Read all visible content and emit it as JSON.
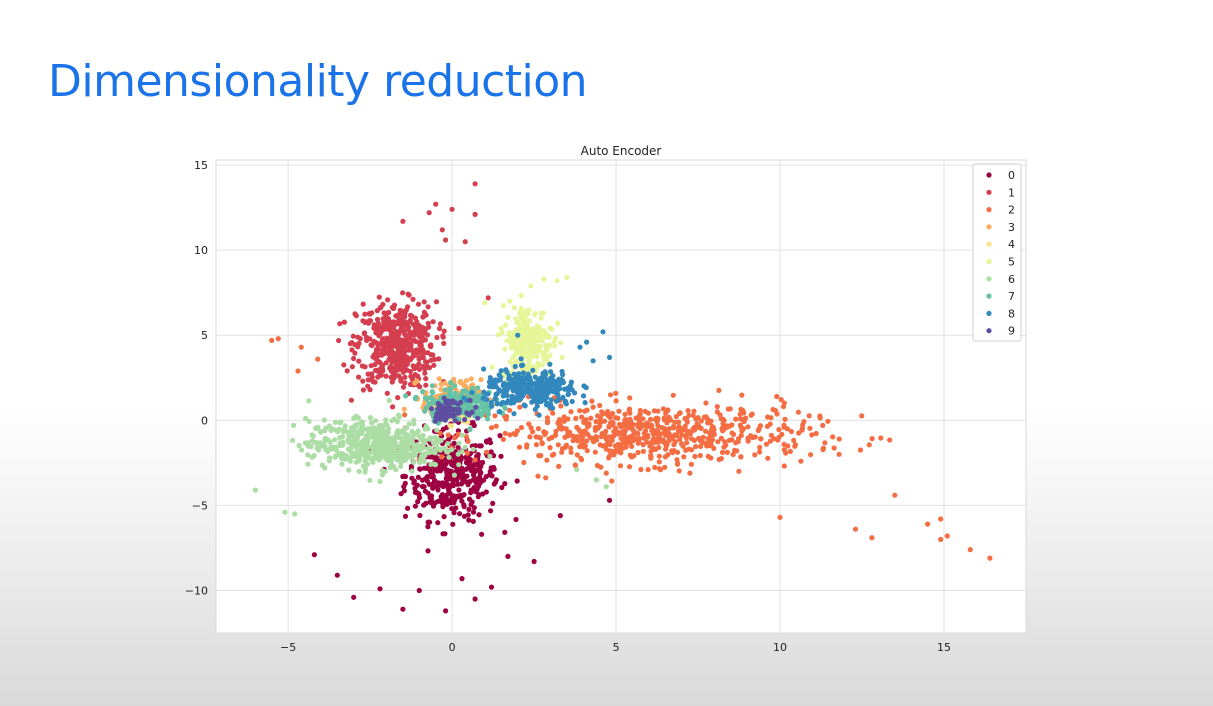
{
  "slide": {
    "title": "Dimensionality reduction"
  },
  "chart_data": {
    "type": "scatter",
    "title": "Auto Encoder",
    "xlabel": "",
    "ylabel": "",
    "xlim": [
      -7.2,
      17.5
    ],
    "ylim": [
      -12.5,
      15.3
    ],
    "xticks": [
      -5,
      0,
      5,
      10,
      15
    ],
    "yticks": [
      15,
      10,
      5,
      0,
      -5,
      -10
    ],
    "grid": true,
    "legend_position": "top-right",
    "series": [
      {
        "name": "0",
        "color": "#9e0142",
        "cluster": {
          "center": [
            0.0,
            -3.2
          ],
          "spread": [
            1.3,
            2.4
          ],
          "n": 400,
          "extra": [
            [
              -3.0,
              -10.4
            ],
            [
              -1.5,
              -11.1
            ],
            [
              -0.2,
              -11.2
            ],
            [
              0.7,
              -10.5
            ],
            [
              1.2,
              -9.8
            ],
            [
              1.7,
              -8.0
            ],
            [
              2.5,
              -8.3
            ],
            [
              3.3,
              -5.6
            ],
            [
              4.8,
              -4.7
            ],
            [
              -4.2,
              -7.9
            ],
            [
              -3.5,
              -9.1
            ],
            [
              -2.2,
              -9.9
            ],
            [
              0.9,
              -6.7
            ],
            [
              -1.0,
              -10.0
            ],
            [
              0.3,
              -9.3
            ]
          ]
        }
      },
      {
        "name": "1",
        "color": "#d53e4f",
        "cluster": {
          "center": [
            -1.7,
            4.4
          ],
          "spread": [
            1.1,
            2.3
          ],
          "n": 480,
          "extra": [
            [
              -0.5,
              12.7
            ],
            [
              -0.7,
              12.2
            ],
            [
              0.7,
              13.9
            ],
            [
              0.0,
              12.4
            ],
            [
              0.7,
              12.1
            ],
            [
              -1.5,
              11.7
            ],
            [
              -0.2,
              10.6
            ],
            [
              0.4,
              10.5
            ],
            [
              1.1,
              7.2
            ],
            [
              -0.3,
              11.2
            ]
          ]
        }
      },
      {
        "name": "2",
        "color": "#f46d43",
        "cluster": {
          "center": [
            6.0,
            -0.8
          ],
          "spread": [
            4.5,
            1.6
          ],
          "n": 640,
          "extra": [
            [
              -5.5,
              4.7
            ],
            [
              -5.3,
              4.8
            ],
            [
              -4.6,
              4.3
            ],
            [
              -4.7,
              2.9
            ],
            [
              -4.1,
              3.6
            ],
            [
              9.9,
              1.4
            ],
            [
              11.8,
              -2.0
            ],
            [
              12.8,
              -6.9
            ],
            [
              14.5,
              -6.1
            ],
            [
              14.9,
              -5.8
            ],
            [
              15.1,
              -6.8
            ],
            [
              14.9,
              -7.0
            ],
            [
              15.8,
              -7.6
            ],
            [
              16.4,
              -8.1
            ],
            [
              13.5,
              -4.4
            ],
            [
              12.3,
              -6.4
            ],
            [
              10.0,
              -5.7
            ],
            [
              11.3,
              -0.3
            ]
          ]
        }
      },
      {
        "name": "3",
        "color": "#fdae61",
        "cluster": {
          "center": [
            0.0,
            1.4
          ],
          "spread": [
            0.8,
            0.9
          ],
          "n": 120
        }
      },
      {
        "name": "4",
        "color": "#fee08b",
        "cluster": {
          "center": [
            0.1,
            0.6
          ],
          "spread": [
            0.6,
            0.7
          ],
          "n": 80
        }
      },
      {
        "name": "5",
        "color": "#e6f598",
        "cluster": {
          "center": [
            2.3,
            4.6
          ],
          "spread": [
            0.7,
            2.0
          ],
          "n": 260,
          "extra": [
            [
              3.5,
              8.4
            ],
            [
              3.2,
              8.2
            ],
            [
              2.8,
              8.3
            ],
            [
              2.4,
              7.9
            ]
          ]
        }
      },
      {
        "name": "6",
        "color": "#abdda4",
        "cluster": {
          "center": [
            -2.3,
            -1.4
          ],
          "spread": [
            1.9,
            1.3
          ],
          "n": 520,
          "extra": [
            [
              -6.0,
              -4.1
            ],
            [
              -5.1,
              -5.4
            ],
            [
              -4.8,
              -5.5
            ],
            [
              4.7,
              -3.9
            ],
            [
              4.4,
              -3.5
            ],
            [
              3.8,
              -2.9
            ]
          ]
        }
      },
      {
        "name": "7",
        "color": "#66c2a5",
        "cluster": {
          "center": [
            0.2,
            1.0
          ],
          "spread": [
            1.0,
            0.9
          ],
          "n": 200
        }
      },
      {
        "name": "8",
        "color": "#3288bd",
        "cluster": {
          "center": [
            2.4,
            1.8
          ],
          "spread": [
            1.3,
            1.0
          ],
          "n": 300,
          "extra": [
            [
              4.6,
              5.2
            ],
            [
              4.8,
              3.7
            ],
            [
              4.3,
              3.5
            ],
            [
              3.9,
              4.3
            ],
            [
              4.1,
              4.6
            ],
            [
              2.0,
              5.0
            ]
          ]
        }
      },
      {
        "name": "9",
        "color": "#5e4fa2",
        "cluster": {
          "center": [
            -0.1,
            0.6
          ],
          "spread": [
            0.5,
            0.5
          ],
          "n": 70
        }
      }
    ]
  }
}
